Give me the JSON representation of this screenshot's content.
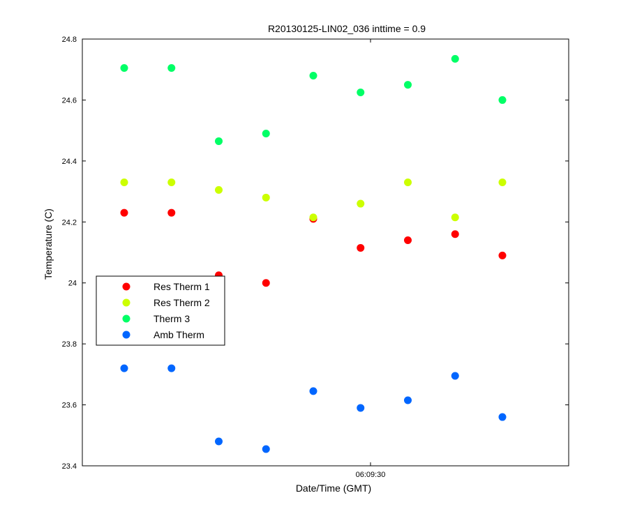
{
  "chart_data": {
    "type": "scatter",
    "title": "R20130125-LIN02_036 inttime = 0.9",
    "xlabel": "Date/Time (GMT)",
    "ylabel": "Temperature (C)",
    "x_tick_labels": [
      "06:09:30"
    ],
    "ylim": [
      23.4,
      24.8
    ],
    "y_ticks": [
      23.4,
      23.6,
      23.8,
      24,
      24.2,
      24.4,
      24.6,
      24.8
    ],
    "y_tick_labels": [
      "23.4",
      "23.6",
      "23.8",
      "24",
      "24.2",
      "24.4",
      "24.6",
      "24.8"
    ],
    "grid": false,
    "legend_position": "middle-left",
    "x_index": [
      1,
      2,
      3,
      4,
      5,
      6,
      7,
      8,
      9
    ],
    "series": [
      {
        "name": "Res Therm 1",
        "color": "#ff0000",
        "values": [
          24.23,
          24.23,
          24.025,
          24.0,
          24.21,
          24.115,
          24.14,
          24.16,
          24.09
        ]
      },
      {
        "name": "Res Therm 2",
        "color": "#ccff00",
        "values": [
          24.33,
          24.33,
          24.305,
          24.28,
          24.215,
          24.26,
          24.33,
          24.215,
          24.33
        ]
      },
      {
        "name": "Therm 3",
        "color": "#00ff66",
        "values": [
          24.705,
          24.705,
          24.465,
          24.49,
          24.68,
          24.625,
          24.65,
          24.735,
          24.6
        ]
      },
      {
        "name": "Amb Therm",
        "color": "#0066ff",
        "values": [
          23.72,
          23.72,
          23.48,
          23.455,
          23.645,
          23.59,
          23.615,
          23.695,
          23.56
        ]
      }
    ]
  }
}
